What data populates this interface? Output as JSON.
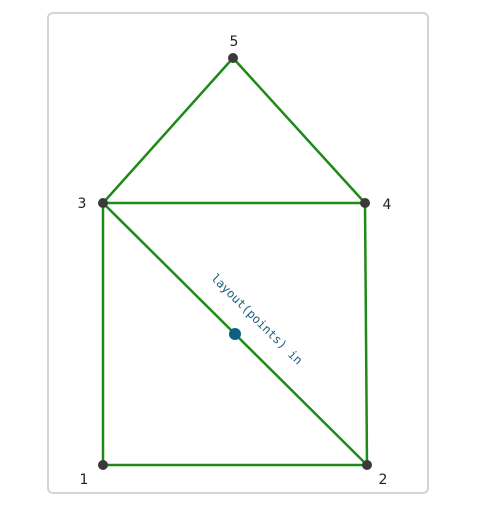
{
  "diagram": {
    "nodes": [
      {
        "id": "1",
        "label": "1"
      },
      {
        "id": "2",
        "label": "2"
      },
      {
        "id": "3",
        "label": "3"
      },
      {
        "id": "4",
        "label": "4"
      },
      {
        "id": "5",
        "label": "5"
      }
    ],
    "edges": [
      {
        "from": "1",
        "to": "2"
      },
      {
        "from": "1",
        "to": "3"
      },
      {
        "from": "2",
        "to": "4"
      },
      {
        "from": "3",
        "to": "4"
      },
      {
        "from": "3",
        "to": "5"
      },
      {
        "from": "4",
        "to": "5"
      },
      {
        "from": "3",
        "to": "2"
      }
    ],
    "highlighted_edge_label": "layout(points) in",
    "colors": {
      "edge": "#1e8a17",
      "node": "#3a3a3a",
      "marker": "#0f5f82",
      "edge_label": "#1f5f80"
    }
  }
}
